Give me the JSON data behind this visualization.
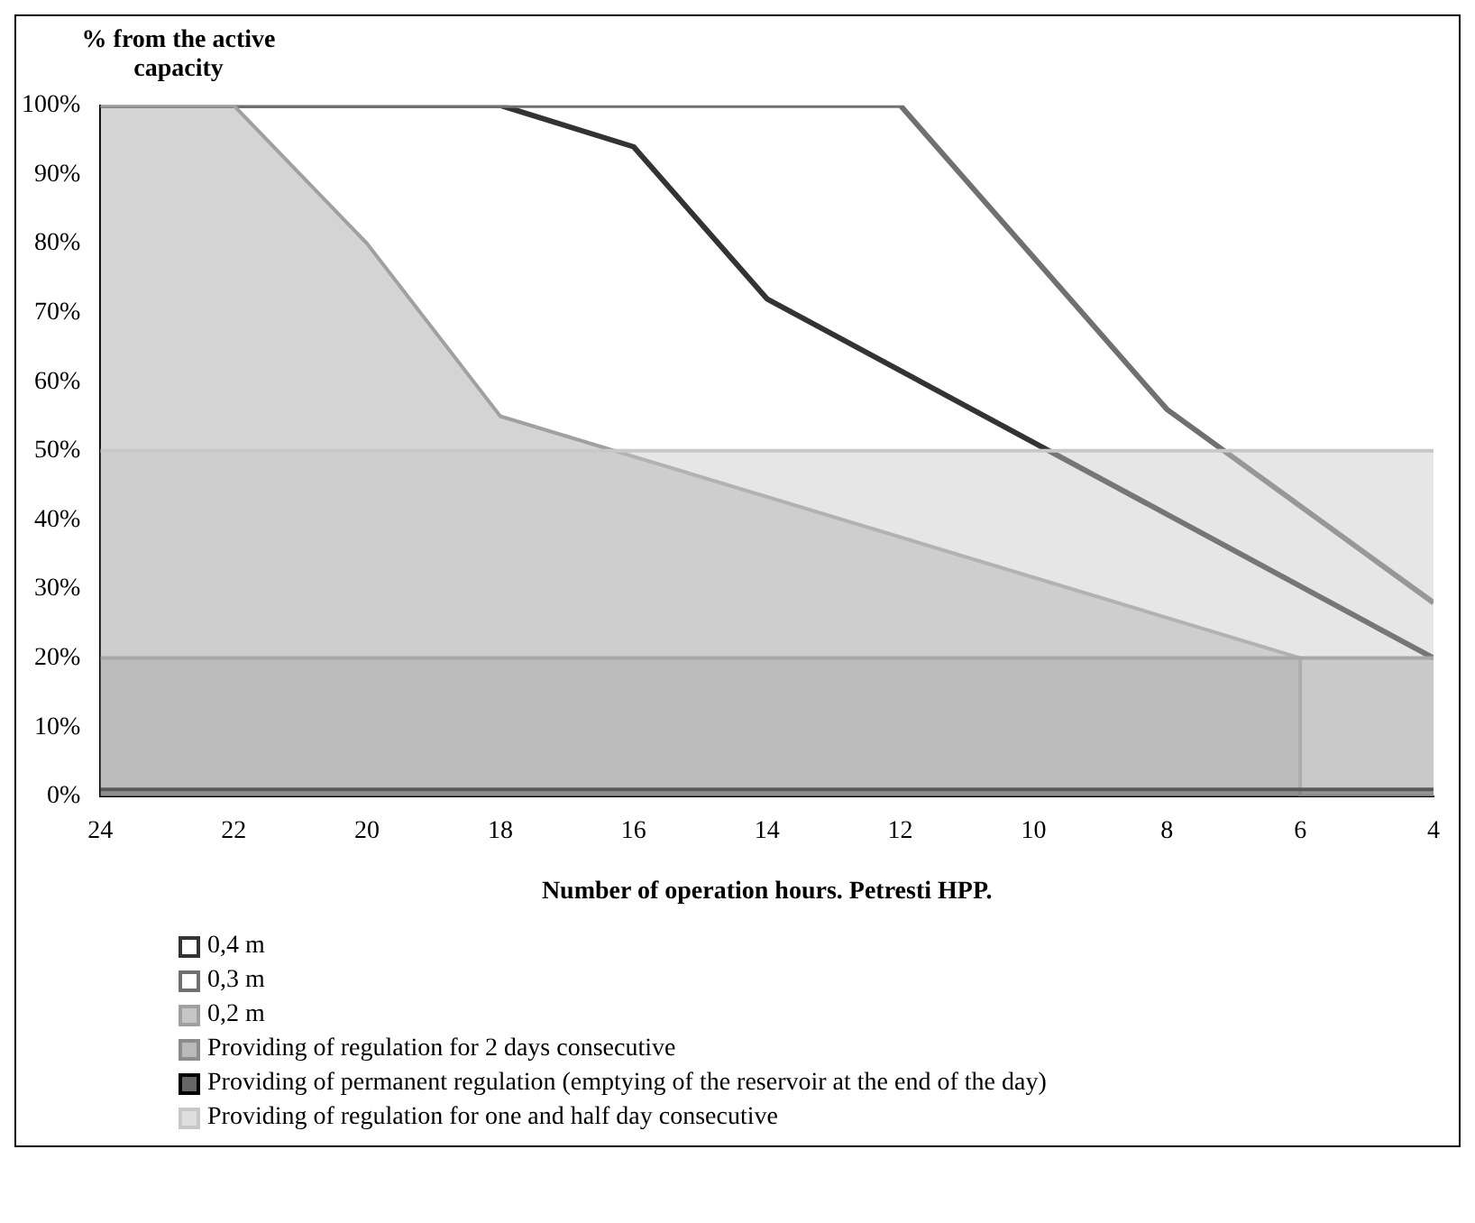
{
  "chart_data": {
    "type": "area",
    "ylabel": "% from the active capacity",
    "xlabel": "Number of operation hours. Petresti HPP.",
    "xlim": [
      24,
      4
    ],
    "xticks": [
      24,
      22,
      20,
      18,
      16,
      14,
      12,
      10,
      8,
      6,
      4
    ],
    "ylim": [
      0,
      100
    ],
    "yticks": [
      {
        "value": 0,
        "label": "0%"
      },
      {
        "value": 10,
        "label": "10%"
      },
      {
        "value": 20,
        "label": "20%"
      },
      {
        "value": 30,
        "label": "30%"
      },
      {
        "value": 40,
        "label": "40%"
      },
      {
        "value": 50,
        "label": "50%"
      },
      {
        "value": 60,
        "label": "60%"
      },
      {
        "value": 70,
        "label": "70%"
      },
      {
        "value": 80,
        "label": "80%"
      },
      {
        "value": 90,
        "label": "90%"
      },
      {
        "value": 100,
        "label": "100%"
      }
    ],
    "legend": "bottom left",
    "series": [
      {
        "name": "0,4 m",
        "type": "line",
        "color": "#333333",
        "x": [
          24,
          18,
          16,
          14,
          4
        ],
        "values": [
          100,
          100,
          94,
          72,
          20
        ]
      },
      {
        "name": "0,3 m",
        "type": "line",
        "color": "#707070",
        "x": [
          24,
          12,
          10,
          8,
          4
        ],
        "values": [
          100,
          100,
          78,
          56,
          28
        ]
      },
      {
        "name": "0,2 m",
        "type": "area",
        "color": "#a0a0a0",
        "x": [
          24,
          22,
          20,
          18,
          6,
          6,
          4
        ],
        "values": [
          100,
          100,
          80,
          55,
          20,
          0,
          0
        ]
      },
      {
        "name": "Providing of regulation for 2 days consecutive",
        "type": "area",
        "color": "#8c8c8c",
        "x": [
          24,
          4
        ],
        "values": [
          20,
          20
        ]
      },
      {
        "name": "Providing of permanent regulation (emptying of the reservoir at the end of the day)",
        "type": "area",
        "color": "#000000",
        "x": [
          24,
          4
        ],
        "values": [
          1,
          1
        ]
      },
      {
        "name": "Providing of regulation for one and half day consecutive",
        "type": "area",
        "color": "#c8c8c8",
        "x": [
          24,
          4
        ],
        "values": [
          50,
          50
        ]
      }
    ]
  }
}
